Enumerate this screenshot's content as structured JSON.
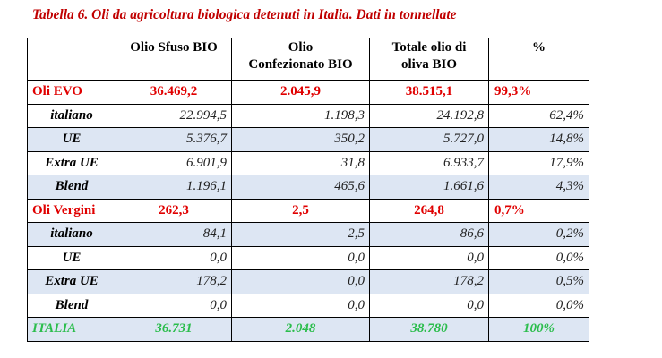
{
  "caption": "Tabella 6. Oli da agricoltura biologica detenuti in Italia. Dati in tonnellate",
  "headers": {
    "c1": [
      "Olio Sfuso BIO"
    ],
    "c2": [
      "Olio",
      "Confezionato BIO"
    ],
    "c3": [
      "Totale olio di",
      "oliva BIO"
    ],
    "c4": [
      "%"
    ]
  },
  "rows": [
    {
      "label": "Oli EVO",
      "values": [
        "36.469,2",
        "2.045,9",
        "38.515,1",
        "99,3%"
      ]
    },
    {
      "label": "italiano",
      "values": [
        "22.994,5",
        "1.198,3",
        "24.192,8",
        "62,4%"
      ]
    },
    {
      "label": "UE",
      "values": [
        "5.376,7",
        "350,2",
        "5.727,0",
        "14,8%"
      ]
    },
    {
      "label": "Extra UE",
      "values": [
        "6.901,9",
        "31,8",
        "6.933,7",
        "17,9%"
      ]
    },
    {
      "label": "Blend",
      "values": [
        "1.196,1",
        "465,6",
        "1.661,6",
        "4,3%"
      ]
    },
    {
      "label": "Oli Vergini",
      "values": [
        "262,3",
        "2,5",
        "264,8",
        "0,7%"
      ]
    },
    {
      "label": "italiano",
      "values": [
        "84,1",
        "2,5",
        "86,6",
        "0,2%"
      ]
    },
    {
      "label": "UE",
      "values": [
        "0,0",
        "0,0",
        "0,0",
        "0,0%"
      ]
    },
    {
      "label": "Extra UE",
      "values": [
        "178,2",
        "0,0",
        "178,2",
        "0,5%"
      ]
    },
    {
      "label": "Blend",
      "values": [
        "0,0",
        "0,0",
        "0,0",
        "0,0%"
      ]
    },
    {
      "label": "ITALIA",
      "values": [
        "36.731",
        "2.048",
        "38.780",
        "100%"
      ]
    }
  ],
  "colors": {
    "caption": "#c00000",
    "group_text": "#e00000",
    "total_text": "#2bbd4c",
    "shade_fill": "#dde6f3"
  }
}
